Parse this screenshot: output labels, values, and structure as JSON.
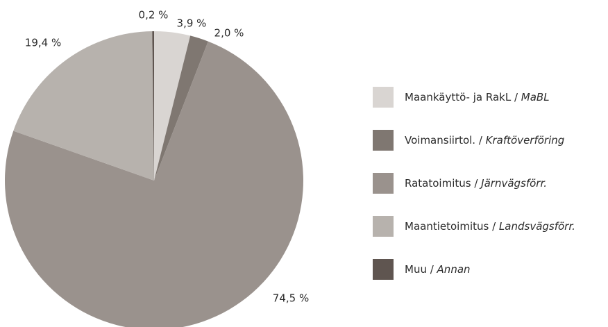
{
  "chart_data": {
    "type": "pie",
    "series": [
      {
        "name": "Maankäyttö- ja RakL / MaBL",
        "color": "#d9d5d2",
        "values": [
          3.9
        ],
        "value_labels": [
          "3,9 %"
        ]
      },
      {
        "name": "Voimansiirtol. / Kraftöverföring",
        "color": "#7f7771",
        "values": [
          2.0
        ],
        "value_labels": [
          "2,0 %"
        ]
      },
      {
        "name": "Ratatoimitus / Järnvägsförr.",
        "color": "#9a928d",
        "values": [
          74.5
        ],
        "value_labels": [
          "74,5 %"
        ]
      },
      {
        "name": "Maantietoimitus / Landsvägsförr.",
        "color": "#b7b2ad",
        "values": [
          19.4
        ],
        "value_labels": [
          "19,4 %"
        ]
      },
      {
        "name": "Muu / Annan",
        "color": "#5f5550",
        "values": [
          0.2
        ],
        "value_labels": [
          "0,2 %"
        ]
      }
    ],
    "legend": "right"
  }
}
